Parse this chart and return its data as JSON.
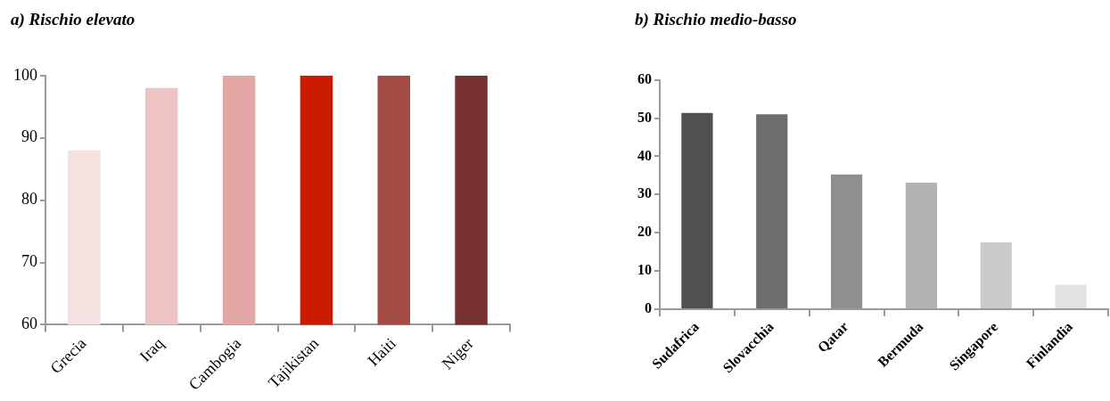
{
  "chart_data": [
    {
      "type": "bar",
      "title": "a) Rischio elevato",
      "categories": [
        "Grecia",
        "Iraq",
        "Cambogia",
        "Tajikistan",
        "Haiti",
        "Niger"
      ],
      "values": [
        88,
        98,
        100,
        100,
        100,
        100
      ],
      "colors": [
        "#f5e1e0",
        "#edc4c3",
        "#e2a6a4",
        "#cc1a00",
        "#a54b45",
        "#773130"
      ],
      "ylim": [
        60,
        100
      ],
      "yticks": [
        60,
        70,
        80,
        90,
        100
      ],
      "grid": false,
      "legend": false
    },
    {
      "type": "bar",
      "title": "b) Rischio medio-basso",
      "categories": [
        "Sudafrica",
        "Slovacchia",
        "Qatar",
        "Bermuda",
        "Singapore",
        "Finlandia"
      ],
      "values": [
        51.4,
        51,
        35.3,
        33.1,
        17.5,
        6.4
      ],
      "colors": [
        "#505050",
        "#6d6d6d",
        "#8f8f8f",
        "#b2b2b2",
        "#cbcbcb",
        "#e3e3e3"
      ],
      "ylim": [
        0,
        60
      ],
      "yticks": [
        0,
        10,
        20,
        30,
        40,
        50,
        60
      ],
      "grid": false,
      "legend": false
    }
  ]
}
